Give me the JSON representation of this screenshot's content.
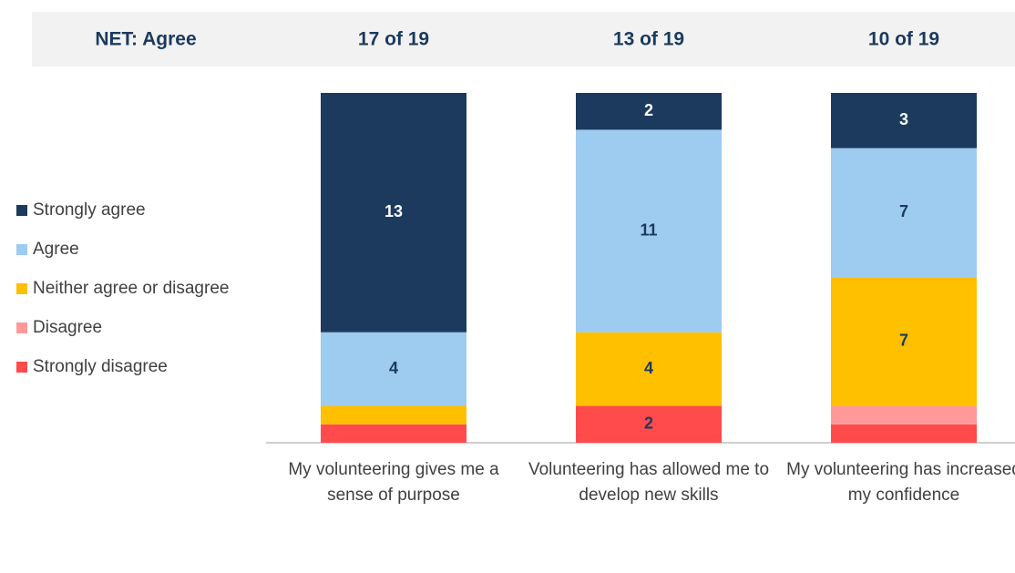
{
  "chart_data": {
    "type": "stacked_bar",
    "net_label": "NET: Agree",
    "net_values": [
      "17 of 19",
      "13 of 19",
      "10 of 19"
    ],
    "categories": [
      "My volunteering gives me a sense of purpose",
      "Volunteering has allowed me to develop new skills",
      "My volunteering has increased my confidence"
    ],
    "series": [
      {
        "name": "Strongly agree",
        "color": "#1b3a5e",
        "values": [
          13,
          2,
          3
        ]
      },
      {
        "name": "Agree",
        "color": "#9ecbf0",
        "values": [
          4,
          11,
          7
        ]
      },
      {
        "name": "Neither agree or disagree",
        "color": "#ffc000",
        "values": [
          1,
          4,
          7
        ]
      },
      {
        "name": "Disagree",
        "color": "#ff9999",
        "values": [
          0,
          0,
          1
        ]
      },
      {
        "name": "Strongly disagree",
        "color": "#ff4b4b",
        "values": [
          1,
          2,
          1
        ]
      }
    ],
    "ylim": [
      0,
      19
    ]
  }
}
